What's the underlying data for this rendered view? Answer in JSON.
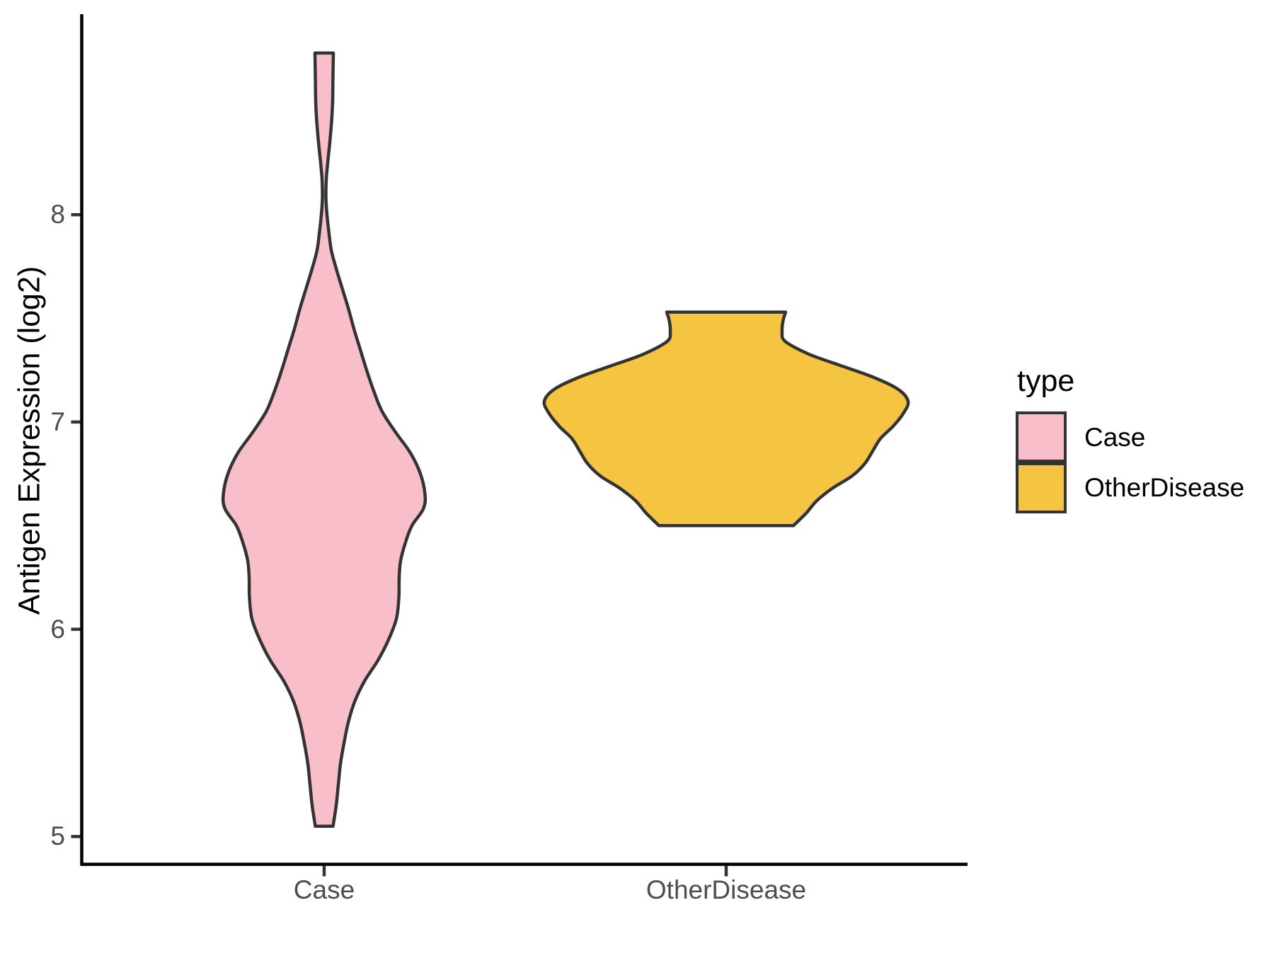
{
  "figure": {
    "background": "#FFFFFF"
  },
  "y_axis": {
    "title": "Antigen Expression (log2)",
    "ticks": [
      "8",
      "7",
      "6",
      "5"
    ],
    "tick_values": [
      8,
      7,
      6,
      5
    ]
  },
  "x_axis": {
    "labels": [
      "Case",
      "OtherDisease"
    ]
  },
  "legend": {
    "title": "type",
    "items": [
      {
        "label": "Case",
        "color": "#F8BFCB"
      },
      {
        "label": "OtherDisease",
        "color": "#F5C542"
      }
    ]
  },
  "colors": {
    "violin_stroke": "#333333",
    "axis_line": "#000000",
    "tick_mark": "#333333",
    "tick_text": "#4D4D4D"
  },
  "chart_data": {
    "type": "violin",
    "title": "",
    "xlabel": "",
    "ylabel": "Antigen Expression (log2)",
    "categories": [
      "Case",
      "OtherDisease"
    ],
    "y_ticks": [
      5,
      6,
      7,
      8
    ],
    "ylim": [
      4.86,
      8.98
    ],
    "grid": "off",
    "legend_position": "right",
    "legend_title": "type",
    "series": [
      {
        "name": "Case",
        "fill": "#F8BFCB",
        "stroke": "#333333",
        "value_range": [
          5.05,
          8.78
        ],
        "peak_density_value": 6.65,
        "profile": [
          [
            8.78,
            13
          ],
          [
            8.68,
            12.5
          ],
          [
            8.55,
            12
          ],
          [
            8.45,
            10.5
          ],
          [
            8.35,
            8
          ],
          [
            8.25,
            5
          ],
          [
            8.17,
            3
          ],
          [
            8.08,
            2.5
          ],
          [
            8.0,
            4
          ],
          [
            7.92,
            6.5
          ],
          [
            7.83,
            10
          ],
          [
            7.74,
            17
          ],
          [
            7.65,
            25
          ],
          [
            7.55,
            34
          ],
          [
            7.45,
            42
          ],
          [
            7.35,
            51
          ],
          [
            7.25,
            60
          ],
          [
            7.15,
            70
          ],
          [
            7.05,
            82
          ],
          [
            6.95,
            101
          ],
          [
            6.85,
            122
          ],
          [
            6.75,
            136
          ],
          [
            6.65,
            142.5
          ],
          [
            6.58,
            140
          ],
          [
            6.5,
            124
          ],
          [
            6.42,
            115
          ],
          [
            6.33,
            108
          ],
          [
            6.25,
            106
          ],
          [
            6.15,
            105.5
          ],
          [
            6.05,
            102
          ],
          [
            5.95,
            91
          ],
          [
            5.85,
            76
          ],
          [
            5.75,
            57
          ],
          [
            5.65,
            43
          ],
          [
            5.55,
            34
          ],
          [
            5.45,
            28
          ],
          [
            5.35,
            23
          ],
          [
            5.25,
            20
          ],
          [
            5.15,
            17
          ],
          [
            5.05,
            12.5
          ]
        ]
      },
      {
        "name": "OtherDisease",
        "fill": "#F5C542",
        "stroke": "#333333",
        "value_range": [
          6.5,
          7.53
        ],
        "peak_density_value": 7.1,
        "profile": [
          [
            7.53,
            84
          ],
          [
            7.49,
            80.5
          ],
          [
            7.44,
            79
          ],
          [
            7.39,
            83
          ],
          [
            7.33,
            115
          ],
          [
            7.28,
            155
          ],
          [
            7.22,
            205
          ],
          [
            7.16,
            242
          ],
          [
            7.1,
            257
          ],
          [
            7.04,
            250
          ],
          [
            6.98,
            236
          ],
          [
            6.92,
            218
          ],
          [
            6.86,
            207
          ],
          [
            6.8,
            196
          ],
          [
            6.74,
            178
          ],
          [
            6.68,
            150
          ],
          [
            6.62,
            128
          ],
          [
            6.56,
            113
          ],
          [
            6.5,
            95
          ]
        ]
      }
    ]
  }
}
